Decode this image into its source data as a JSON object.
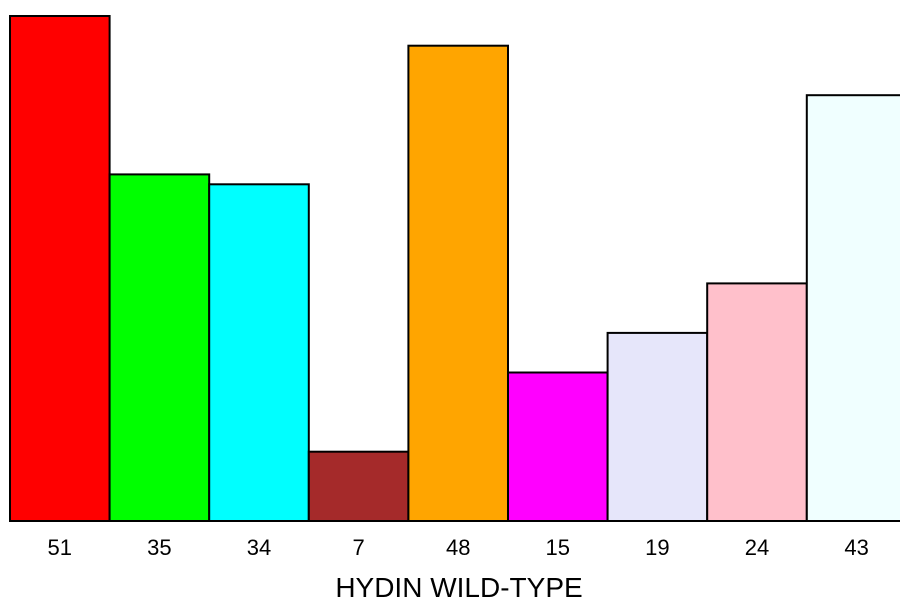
{
  "chart_data": {
    "type": "bar",
    "categories": [
      "51",
      "35",
      "34",
      "7",
      "48",
      "15",
      "19",
      "24",
      "43"
    ],
    "values": [
      51,
      35,
      34,
      7,
      48,
      15,
      19,
      24,
      43
    ],
    "colors": [
      "#ff0000",
      "#00ff00",
      "#00ffff",
      "#a52a2a",
      "#ffa500",
      "#ff00ff",
      "#e6e6fa",
      "#ffc0cb",
      "#f0ffff"
    ],
    "title": "",
    "xlabel": "HYDIN WILD-TYPE",
    "ylabel": "",
    "ylim": [
      0,
      51
    ],
    "grid": false,
    "legend": "none"
  }
}
